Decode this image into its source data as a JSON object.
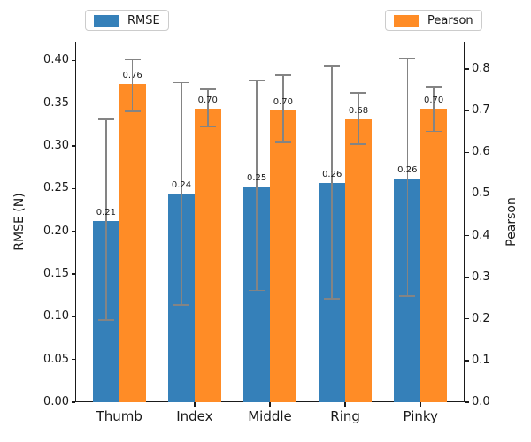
{
  "chart_data": {
    "type": "bar",
    "title": "",
    "categories": [
      "Thumb",
      "Index",
      "Middle",
      "Ring",
      "Pinky"
    ],
    "xlim": [
      -0.585,
      4.585
    ],
    "bar_width_ratio": 0.35,
    "grid": false,
    "background": "#ffffff",
    "error_color": "#848484",
    "legend": [
      {
        "label": "RMSE",
        "color": "#3580b9",
        "position": "top-left"
      },
      {
        "label": "Pearson",
        "color": "#ff8c26",
        "position": "top-right"
      }
    ],
    "left_axis": {
      "label": "RMSE (N)",
      "ylim": [
        0,
        0.422
      ],
      "tick_values": [
        0,
        0.05,
        0.1,
        0.15,
        0.2,
        0.25,
        0.3,
        0.35,
        0.4
      ],
      "ticks": [
        "0.00",
        "0.05",
        "0.10",
        "0.15",
        "0.20",
        "0.25",
        "0.30",
        "0.35",
        "0.40"
      ]
    },
    "right_axis": {
      "label": "Pearson",
      "ylim": [
        0,
        0.866
      ],
      "tick_values": [
        0,
        0.1,
        0.2,
        0.3,
        0.4,
        0.5,
        0.6,
        0.7,
        0.8
      ],
      "ticks": [
        "0.0",
        "0.1",
        "0.2",
        "0.3",
        "0.4",
        "0.5",
        "0.6",
        "0.7",
        "0.8"
      ]
    },
    "series": [
      {
        "name": "RMSE",
        "axis": "left",
        "color": "#3580b9",
        "values": [
          0.212,
          0.244,
          0.252,
          0.256,
          0.262
        ],
        "bar_labels": [
          "0.21",
          "0.24",
          "0.25",
          "0.26",
          "0.26"
        ],
        "error_low": [
          0.096,
          0.114,
          0.131,
          0.121,
          0.124
        ],
        "error_high": [
          0.331,
          0.374,
          0.376,
          0.393,
          0.402
        ]
      },
      {
        "name": "Pearson",
        "axis": "right",
        "color": "#ff8c26",
        "values": [
          0.764,
          0.704,
          0.7,
          0.679,
          0.705
        ],
        "bar_labels": [
          "0.76",
          "0.70",
          "0.70",
          "0.68",
          "0.70"
        ],
        "error_low": [
          0.698,
          0.662,
          0.624,
          0.62,
          0.651
        ],
        "error_high": [
          0.823,
          0.751,
          0.785,
          0.743,
          0.758
        ]
      }
    ]
  }
}
